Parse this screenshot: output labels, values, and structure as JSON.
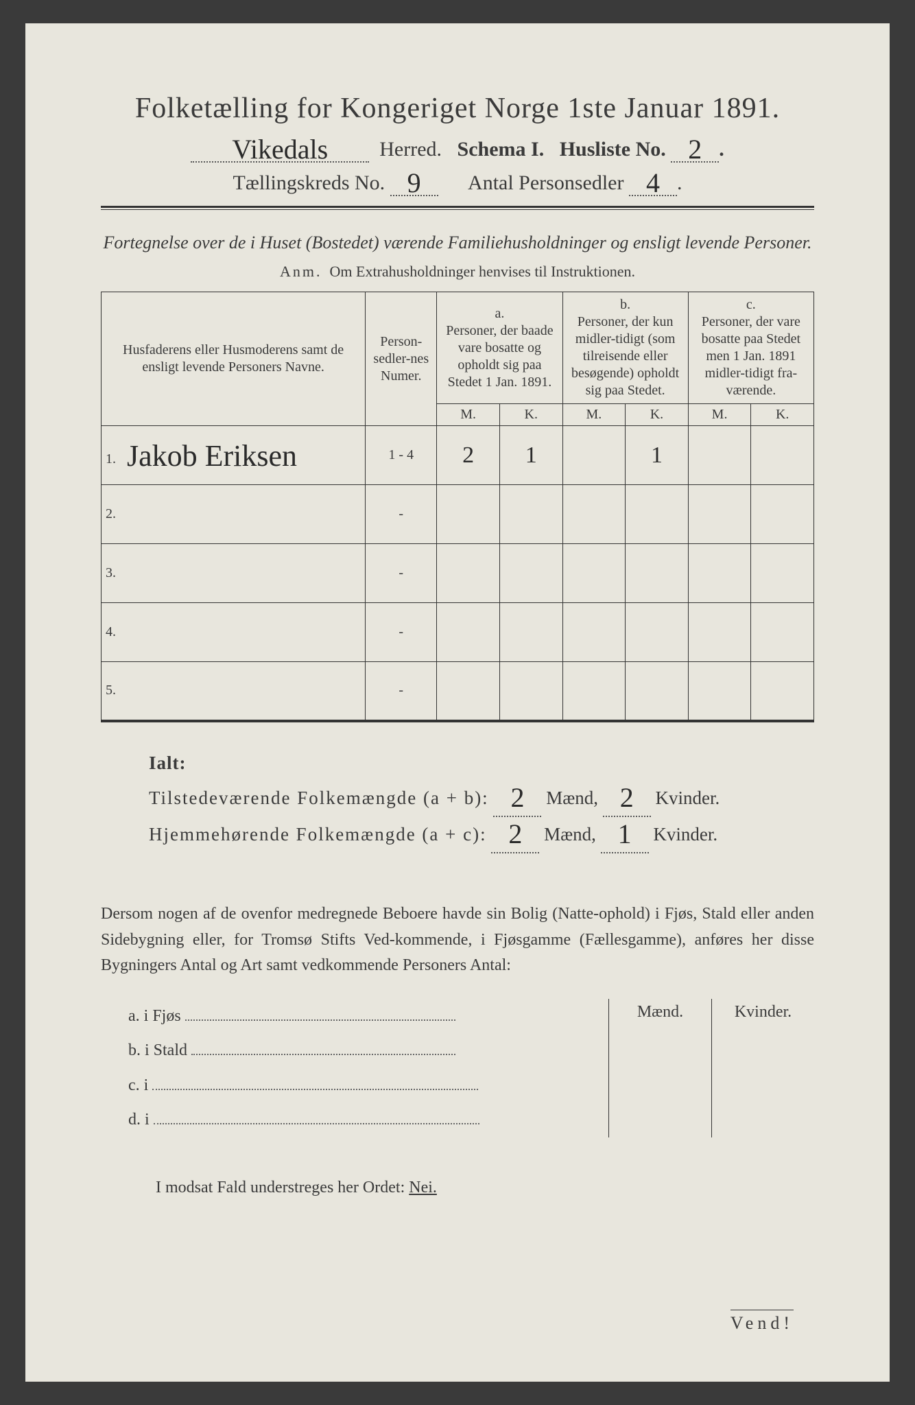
{
  "title": "Folketælling for Kongeriget Norge 1ste Januar 1891.",
  "header": {
    "herred_value": "Vikedals",
    "herred_label": "Herred.",
    "schema_label": "Schema I.",
    "husliste_label": "Husliste No.",
    "husliste_value": "2",
    "kreds_label": "Tællingskreds No.",
    "kreds_value": "9",
    "personsedler_label": "Antal Personsedler",
    "personsedler_value": "4"
  },
  "subtitle": "Fortegnelse over de i Huset (Bostedet) værende Familiehusholdninger og ensligt levende Personer.",
  "anm_label": "Anm.",
  "anm_text": "Om Extrahusholdninger henvises til Instruktionen.",
  "table": {
    "col_name": "Husfaderens eller Husmoderens samt de ensligt levende Personers Navne.",
    "col_num": "Person-sedler-nes Numer.",
    "col_a_top": "a.",
    "col_a": "Personer, der baade vare bosatte og opholdt sig paa Stedet 1 Jan. 1891.",
    "col_b_top": "b.",
    "col_b": "Personer, der kun midler-tidigt (som tilreisende eller besøgende) opholdt sig paa Stedet.",
    "col_c_top": "c.",
    "col_c": "Personer, der vare bosatte paa Stedet men 1 Jan. 1891 midler-tidigt fra-værende.",
    "mk_m": "M.",
    "mk_k": "K.",
    "rows": [
      {
        "n": "1.",
        "name": "Jakob Eriksen",
        "num": "1 - 4",
        "am": "2",
        "ak": "1",
        "bm": "",
        "bk": "1",
        "cm": "",
        "ck": ""
      },
      {
        "n": "2.",
        "name": "",
        "num": "-",
        "am": "",
        "ak": "",
        "bm": "",
        "bk": "",
        "cm": "",
        "ck": ""
      },
      {
        "n": "3.",
        "name": "",
        "num": "-",
        "am": "",
        "ak": "",
        "bm": "",
        "bk": "",
        "cm": "",
        "ck": ""
      },
      {
        "n": "4.",
        "name": "",
        "num": "-",
        "am": "",
        "ak": "",
        "bm": "",
        "bk": "",
        "cm": "",
        "ck": ""
      },
      {
        "n": "5.",
        "name": "",
        "num": "-",
        "am": "",
        "ak": "",
        "bm": "",
        "bk": "",
        "cm": "",
        "ck": ""
      }
    ]
  },
  "totals": {
    "ialt": "Ialt:",
    "line1_label": "Tilstedeværende Folkemængde (a + b):",
    "line1_m": "2",
    "line1_k": "2",
    "line2_label": "Hjemmehørende Folkemængde (a + c):",
    "line2_m": "2",
    "line2_k": "1",
    "maend": "Mænd,",
    "kvinder": "Kvinder."
  },
  "paragraph": "Dersom nogen af de ovenfor medregnede Beboere havde sin Bolig (Natte-ophold) i Fjøs, Stald eller anden Sidebygning eller, for Tromsø Stifts Ved-kommende, i Fjøsgamme (Fællesgamme), anføres her disse Bygningers Antal og Art samt vedkommende Personers Antal:",
  "sidebldg": {
    "maend": "Mænd.",
    "kvinder": "Kvinder.",
    "rows": [
      "a.  i     Fjøs",
      "b.  i     Stald",
      "c.  i",
      "d.  i"
    ]
  },
  "nei": "I modsat Fald understreges her Ordet: ",
  "nei_word": "Nei.",
  "vend": "Vend!"
}
